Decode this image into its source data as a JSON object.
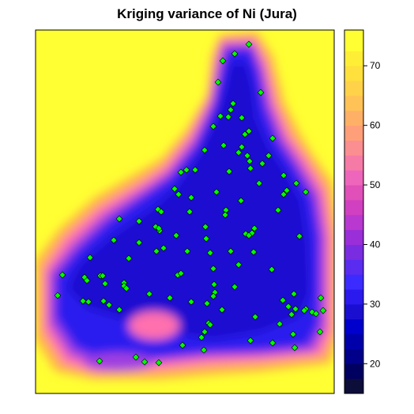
{
  "chart_data": {
    "type": "heatmap",
    "title": "Kriging variance of Ni (Jura)",
    "xlabel": "",
    "ylabel": "",
    "colorbar": {
      "ticks": [
        20,
        30,
        40,
        50,
        60,
        70
      ],
      "range": [
        15,
        76
      ],
      "levels": [
        15,
        17.5,
        20,
        22.5,
        25,
        27.5,
        30,
        32.5,
        35,
        37.5,
        40,
        42.5,
        45,
        47.5,
        50,
        52.5,
        55,
        57.5,
        60,
        62.5,
        65,
        67.5,
        70,
        72.5,
        76
      ]
    },
    "colors": {
      "min": "#0d0d3a",
      "low": "#0000aa",
      "mid_low": "#2a1aee",
      "mid": "#8a2bd8",
      "mid_high": "#ee66bb",
      "high": "#ffaa66",
      "max": "#ffff33",
      "points": "#00ff00",
      "point_border": "#000000"
    },
    "observations_marked": true,
    "grid": false,
    "legend_placement": "right"
  }
}
